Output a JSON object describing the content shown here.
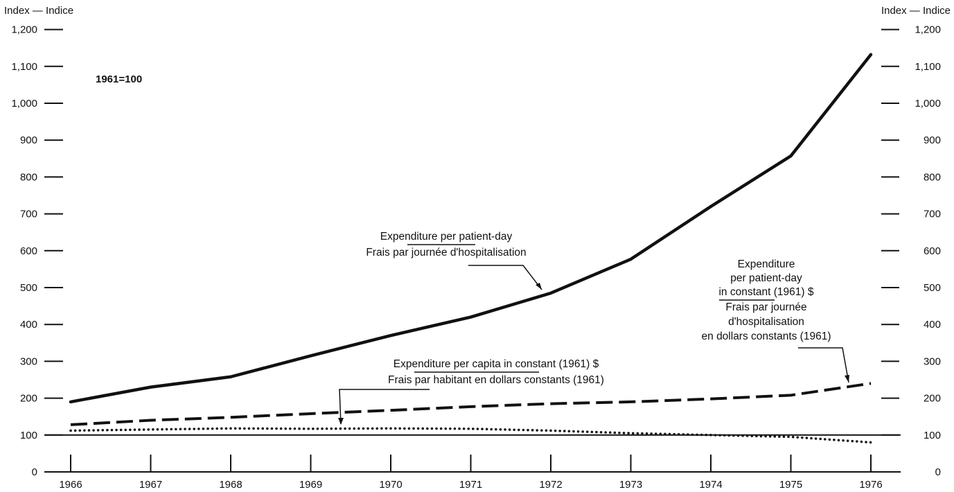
{
  "chart_data": {
    "type": "line",
    "left_axis_title": "Index — Indice",
    "right_axis_title": "Index — Indice",
    "base_note": "1961=100",
    "x": [
      1966,
      1967,
      1968,
      1969,
      1970,
      1971,
      1972,
      1973,
      1974,
      1975,
      1976
    ],
    "ylim": [
      0,
      1200
    ],
    "yticks": [
      0,
      100,
      200,
      300,
      400,
      500,
      600,
      700,
      800,
      900,
      1000,
      1100,
      1200
    ],
    "ytick_labels": [
      "0",
      "100",
      "200",
      "300",
      "400",
      "500",
      "600",
      "700",
      "800",
      "900",
      "1,000",
      "1,100",
      "1,200"
    ],
    "reference_line": 100,
    "series": [
      {
        "name": "Expenditure per patient-day / Frais par journée d'hospitalisation",
        "style": "solid",
        "values": [
          190,
          230,
          258,
          315,
          370,
          420,
          485,
          577,
          720,
          857,
          1132
        ]
      },
      {
        "name": "Expenditure per patient-day in constant (1961) $ / Frais par journée d'hospitalisation en dollars constants (1961)",
        "style": "dashed",
        "values": [
          128,
          140,
          148,
          158,
          167,
          177,
          185,
          190,
          198,
          208,
          240
        ]
      },
      {
        "name": "Expenditure per capita in constant (1961) $ / Frais par habitant en dollars constants (1961)",
        "style": "dotted",
        "values": [
          112,
          115,
          118,
          117,
          118,
          117,
          112,
          105,
          100,
          95,
          80
        ]
      }
    ],
    "annotations": [
      {
        "series": 0,
        "lines": [
          "Expenditure per patient-day",
          "Frais par journée d'hospitalisation"
        ]
      },
      {
        "series": 1,
        "lines": [
          "Expenditure",
          "per patient-day",
          "in constant (1961) $",
          "Frais par journée",
          "d'hospitalisation",
          "en dollars constants (1961)"
        ]
      },
      {
        "series": 2,
        "lines": [
          "Expenditure per capita in constant (1961) $",
          "Frais par habitant en dollars constants (1961)"
        ]
      }
    ],
    "colors": {
      "line": "#111111",
      "background": "#ffffff"
    }
  }
}
